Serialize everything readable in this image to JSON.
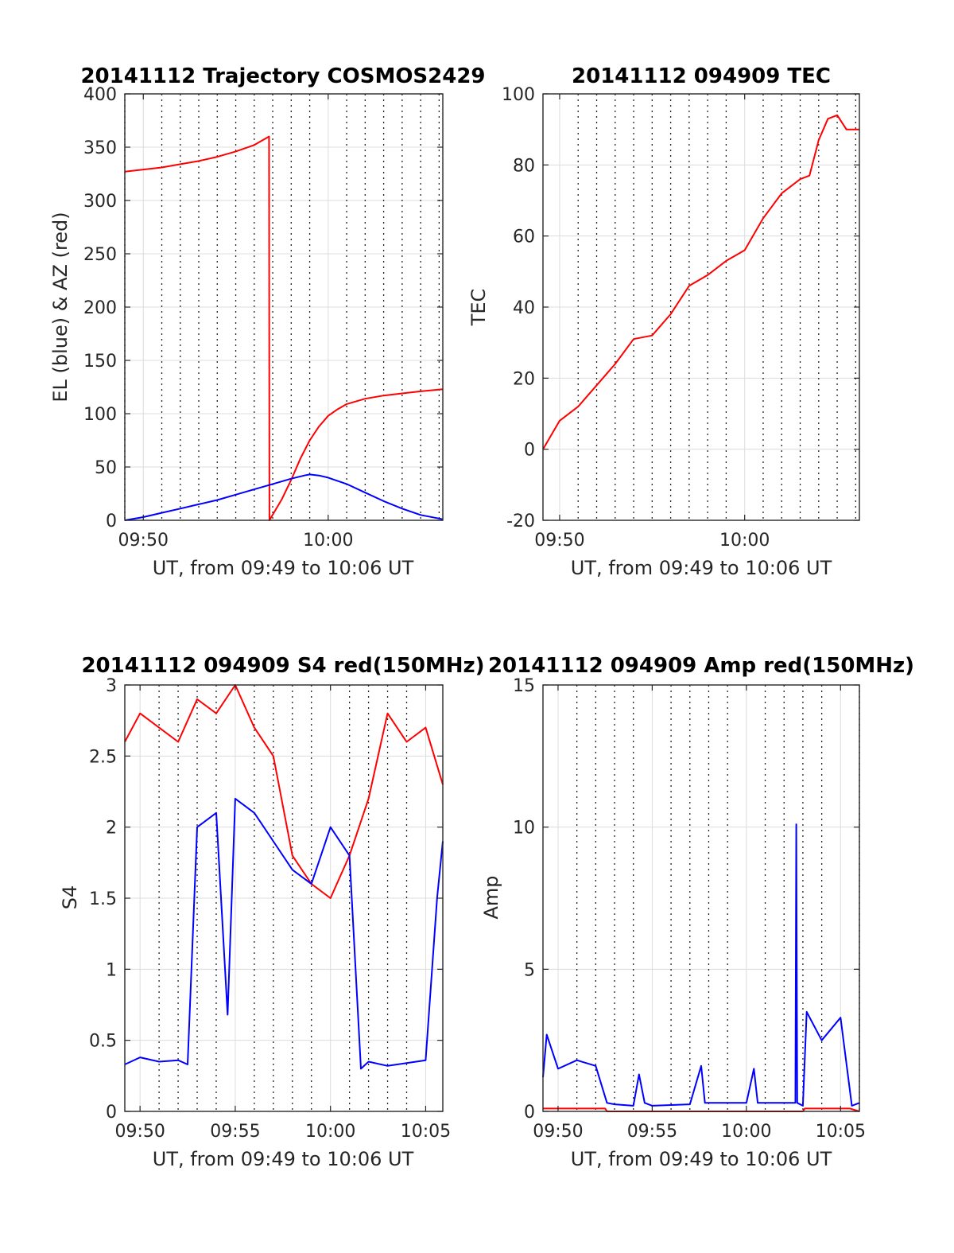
{
  "chart_data": [
    {
      "id": "trajectory",
      "type": "line",
      "title": "20141112 Trajectory COSMOS2429",
      "xlabel": "UT, from 09:49 to 10:06 UT",
      "ylabel": "EL (blue) & AZ (red)",
      "xlim": [
        "09:49.0",
        "10:06.2"
      ],
      "ylim": [
        0,
        400
      ],
      "yticks": [
        0,
        50,
        100,
        150,
        200,
        250,
        300,
        350,
        400
      ],
      "xticks": [
        "09:50",
        "10:00"
      ],
      "grid": true,
      "series": [
        {
          "color": "#ff0000",
          "x": [
            "09:49.0",
            "09:50.0",
            "09:51.0",
            "09:52.0",
            "09:53.0",
            "09:54.0",
            "09:55.0",
            "09:56.0",
            "09:56.8",
            "09:56.82",
            "09:57.5",
            "09:58.0",
            "09:58.5",
            "09:59.0",
            "09:59.5",
            "10:00.0",
            "10:00.5",
            "10:01.0",
            "10:02.0",
            "10:03.0",
            "10:04.0",
            "10:05.0",
            "10:06.2"
          ],
          "y": [
            327,
            329,
            331,
            334,
            337,
            341,
            346,
            352,
            360,
            0,
            20,
            38,
            58,
            75,
            88,
            98,
            104,
            109,
            114,
            117,
            119,
            121,
            123
          ]
        },
        {
          "color": "#0000ff",
          "x": [
            "09:49.0",
            "09:50.0",
            "09:51.0",
            "09:52.0",
            "09:53.0",
            "09:54.0",
            "09:55.0",
            "09:56.0",
            "09:57.0",
            "09:58.0",
            "09:58.7",
            "09:59.0",
            "09:59.5",
            "10:00.0",
            "10:01.0",
            "10:02.0",
            "10:03.0",
            "10:04.0",
            "10:05.0",
            "10:06.2"
          ],
          "y": [
            0,
            3,
            7,
            11,
            15,
            19,
            24,
            29,
            34,
            39,
            42,
            43,
            42,
            40,
            34,
            26,
            18,
            11,
            5,
            1
          ]
        }
      ]
    },
    {
      "id": "tec",
      "type": "line",
      "title": "20141112 094909 TEC",
      "xlabel": "UT, from 09:49 to 10:06 UT",
      "ylabel": "TEC",
      "xlim": [
        "09:49.1",
        "10:06.2"
      ],
      "ylim": [
        -20,
        100
      ],
      "yticks": [
        -20,
        0,
        20,
        40,
        60,
        80,
        100
      ],
      "xticks": [
        "09:50",
        "10:00"
      ],
      "grid": true,
      "series": [
        {
          "color": "#ff0000",
          "x": [
            "09:49.1",
            "09:50.0",
            "09:51.0",
            "09:52.0",
            "09:53.0",
            "09:54.0",
            "09:55.0",
            "09:56.0",
            "09:57.0",
            "09:58.0",
            "09:59.0",
            "10:00.0",
            "10:01.0",
            "10:02.0",
            "10:03.0",
            "10:03.5",
            "10:04.0",
            "10:04.5",
            "10:05.0",
            "10:05.5",
            "10:06.2"
          ],
          "y": [
            0,
            8,
            12,
            18,
            24,
            31,
            32,
            38,
            46,
            49,
            53,
            56,
            65,
            72,
            76,
            77,
            87,
            93,
            94,
            90,
            90
          ]
        }
      ]
    },
    {
      "id": "s4",
      "type": "line",
      "title": "20141112 094909 S4 red(150MHz)",
      "xlabel": "UT, from 09:49 to 10:06 UT",
      "ylabel": "S4",
      "xlim": [
        "09:49.2",
        "10:05.9"
      ],
      "ylim": [
        0,
        3
      ],
      "yticks": [
        0,
        0.5,
        1,
        1.5,
        2,
        2.5,
        3
      ],
      "xticks": [
        "09:50",
        "09:55",
        "10:00",
        "10:05"
      ],
      "grid": true,
      "series": [
        {
          "color": "#ff0000",
          "x": [
            "09:49.2",
            "09:50.0",
            "09:51.0",
            "09:52.0",
            "09:53.0",
            "09:54.0",
            "09:55.0",
            "09:56.0",
            "09:57.0",
            "09:58.0",
            "09:59.0",
            "10:00.0",
            "10:01.0",
            "10:02.0",
            "10:03.0",
            "10:04.0",
            "10:05.0",
            "10:05.9"
          ],
          "y": [
            2.6,
            2.8,
            2.7,
            2.6,
            2.9,
            2.8,
            3.0,
            2.7,
            2.5,
            1.8,
            1.6,
            1.5,
            1.8,
            2.2,
            2.8,
            2.6,
            2.7,
            2.3
          ]
        },
        {
          "color": "#0000ff",
          "x": [
            "09:49.2",
            "09:50.0",
            "09:51.0",
            "09:52.0",
            "09:52.5",
            "09:53.0",
            "09:54.0",
            "09:54.6",
            "09:55.0",
            "09:56.0",
            "09:57.0",
            "09:58.0",
            "09:59.0",
            "10:00.0",
            "10:01.0",
            "10:01.6",
            "10:02.0",
            "10:03.0",
            "10:04.0",
            "10:05.0",
            "10:05.6",
            "10:05.9"
          ],
          "y": [
            0.33,
            0.38,
            0.35,
            0.36,
            0.33,
            2.0,
            2.1,
            0.68,
            2.2,
            2.1,
            1.9,
            1.7,
            1.6,
            2.0,
            1.8,
            0.3,
            0.35,
            0.32,
            0.34,
            0.36,
            1.5,
            1.9
          ]
        }
      ]
    },
    {
      "id": "amp",
      "type": "line",
      "title": "20141112 094909 Amp red(150MHz)",
      "xlabel": "UT, from 09:49 to 10:06 UT",
      "ylabel": "Amp",
      "xlim": [
        "09:49.2",
        "10:06.0"
      ],
      "ylim": [
        0,
        15
      ],
      "yticks": [
        0,
        5,
        10,
        15
      ],
      "xticks": [
        "09:50",
        "09:55",
        "10:00",
        "10:05"
      ],
      "grid": true,
      "series": [
        {
          "color": "#ff0000",
          "x": [
            "09:49.2",
            "09:52.5",
            "09:52.6",
            "10:03.0",
            "10:03.1",
            "10:05.5",
            "10:06.0"
          ],
          "y": [
            0.1,
            0.1,
            0.0,
            0.0,
            0.1,
            0.1,
            0.0
          ]
        },
        {
          "color": "#0000ff",
          "x": [
            "09:49.2",
            "09:49.4",
            "09:50.0",
            "09:51.0",
            "09:52.0",
            "09:52.6",
            "09:53.0",
            "09:54.0",
            "09:54.3",
            "09:54.6",
            "09:55.0",
            "09:57.0",
            "09:57.6",
            "09:57.8",
            "10:00.0",
            "10:00.4",
            "10:00.6",
            "10:02.0",
            "10:02.6",
            "10:02.65",
            "10:02.7",
            "10:03.0",
            "10:03.2",
            "10:04.0",
            "10:05.0",
            "10:05.6",
            "10:06.0"
          ],
          "y": [
            1.2,
            2.7,
            1.5,
            1.8,
            1.6,
            0.3,
            0.25,
            0.2,
            1.3,
            0.3,
            0.2,
            0.25,
            1.6,
            0.3,
            0.3,
            1.5,
            0.3,
            0.3,
            0.3,
            10.1,
            0.3,
            0.2,
            3.5,
            2.5,
            3.3,
            0.2,
            0.3
          ]
        }
      ]
    }
  ]
}
